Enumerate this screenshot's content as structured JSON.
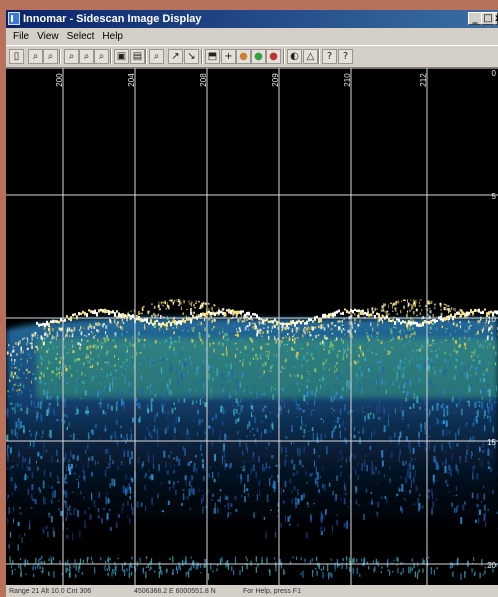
{
  "window": {
    "title": "Innomar - Sidescan Image Display",
    "controls": {
      "minimize": "_",
      "maximize": "□",
      "close": "x"
    }
  },
  "menu": [
    "File",
    "View",
    "Select",
    "Help"
  ],
  "toolbar": [
    {
      "name": "new-document-icon",
      "glyph": "▯"
    },
    {
      "name": "zoom-in-icon",
      "glyph": "⌕"
    },
    {
      "name": "zoom-out-icon",
      "glyph": "⌕"
    },
    {
      "name": "zoom-area-icon",
      "glyph": "⌕"
    },
    {
      "name": "zoom-fit-icon",
      "glyph": "⌕"
    },
    {
      "name": "zoom-reset-icon",
      "glyph": "⌕"
    },
    {
      "name": "single-panel-icon",
      "glyph": "▣"
    },
    {
      "name": "dual-panel-icon",
      "glyph": "▤"
    },
    {
      "name": "find-icon",
      "glyph": "⌕"
    },
    {
      "name": "measure-icon",
      "glyph": "↗"
    },
    {
      "name": "measure-angle-icon",
      "glyph": "↘"
    },
    {
      "name": "export-icon",
      "glyph": "⬒"
    },
    {
      "name": "crosshair-icon",
      "glyph": "+"
    },
    {
      "name": "palette-icon",
      "glyph": "●"
    },
    {
      "name": "palette-color-icon",
      "glyph": "●"
    },
    {
      "name": "palette-gray-icon",
      "glyph": "●"
    },
    {
      "name": "contrast-icon",
      "glyph": "◐"
    },
    {
      "name": "gain-icon",
      "glyph": "△"
    },
    {
      "name": "info-icon",
      "glyph": "?"
    },
    {
      "name": "context-help-icon",
      "glyph": "?"
    }
  ],
  "x_ticks": [
    "200",
    "204",
    "208",
    "209",
    "210",
    "212"
  ],
  "y_ticks": [
    "0",
    "5",
    "10",
    "15",
    "20"
  ],
  "status": {
    "range": "Range  21 Alt 10.0 Cnt  306",
    "position": "4506368.2 E 6000551.8 N",
    "help": "For Help, press F1"
  }
}
